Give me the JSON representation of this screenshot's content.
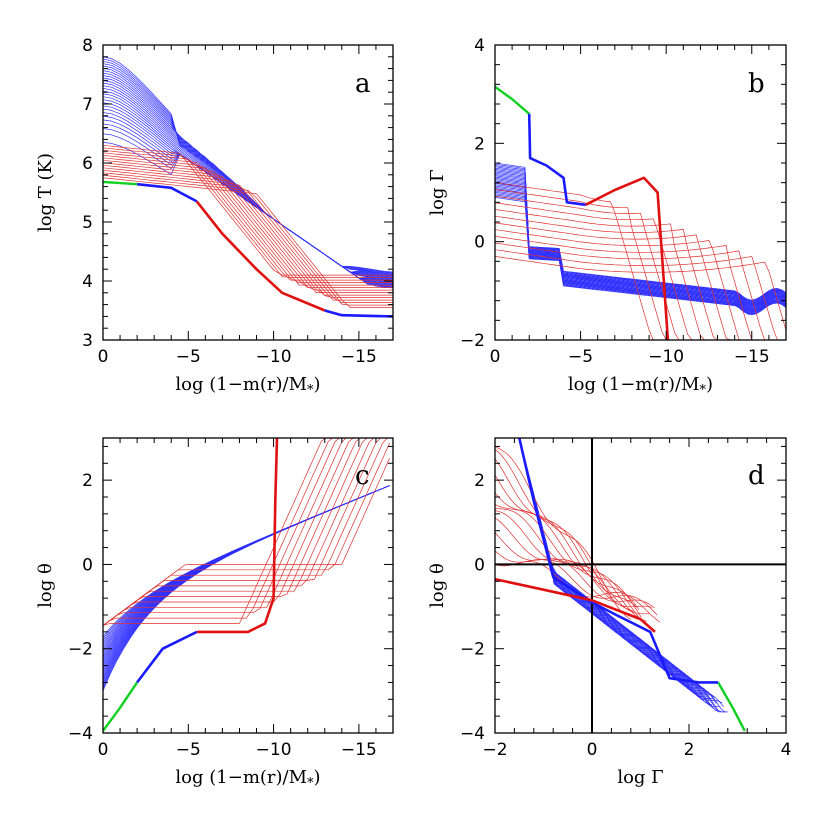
{
  "figure": {
    "description": "Stellar envelope structure: 2x2 panels"
  },
  "chart_data": [
    {
      "type": "line",
      "panel": "a",
      "panel_tag": "a",
      "xlabel": "log (1−m(r)/M",
      "xlabel_sub": "*",
      "xlabel_tail": ")",
      "ylabel": "log T (K)",
      "xlim": [
        0,
        -17
      ],
      "ylim": [
        3,
        8
      ],
      "xticks": [
        0,
        -5,
        -10,
        -15
      ],
      "yticks": [
        3,
        4,
        5,
        6,
        7,
        8
      ],
      "xtick_labels": [
        "0",
        "−5",
        "−10",
        "−15"
      ],
      "ytick_labels": [
        "3",
        "4",
        "5",
        "6",
        "7",
        "8"
      ],
      "highlight": {
        "green": [
          [
            0,
            5.68
          ],
          [
            -2,
            5.64
          ]
        ],
        "blue1": [
          [
            -2,
            5.64
          ],
          [
            -4,
            5.58
          ],
          [
            -5.5,
            5.35
          ]
        ],
        "red": [
          [
            -5.5,
            5.35
          ],
          [
            -7,
            4.8
          ],
          [
            -9,
            4.2
          ],
          [
            -10.5,
            3.8
          ],
          [
            -13,
            3.5
          ]
        ],
        "blue2": [
          [
            -13,
            3.5
          ],
          [
            -14,
            3.42
          ],
          [
            -17,
            3.4
          ]
        ]
      },
      "family": {
        "blue_count": 28,
        "red_count": 14,
        "center_top": 7.8,
        "center_low": 6.4
      }
    },
    {
      "type": "line",
      "panel": "b",
      "panel_tag": "b",
      "xlabel": "log (1−m(r)/M",
      "xlabel_sub": "*",
      "xlabel_tail": ")",
      "ylabel": "log Γ",
      "xlim": [
        0,
        -17
      ],
      "ylim": [
        -2,
        4
      ],
      "xticks": [
        0,
        -5,
        -10,
        -15
      ],
      "yticks": [
        -2,
        0,
        2,
        4
      ],
      "xtick_labels": [
        "0",
        "−5",
        "−10",
        "−15"
      ],
      "ytick_labels": [
        "−2",
        "0",
        "2",
        "4"
      ],
      "highlight": {
        "green": [
          [
            0,
            3.15
          ],
          [
            -1,
            2.9
          ],
          [
            -2,
            2.6
          ]
        ],
        "blue1": [
          [
            -2,
            2.6
          ],
          [
            -2.05,
            1.7
          ],
          [
            -3,
            1.55
          ],
          [
            -4,
            1.3
          ],
          [
            -4.2,
            0.8
          ],
          [
            -5.3,
            0.75
          ]
        ],
        "red": [
          [
            -5.3,
            0.75
          ],
          [
            -7,
            1.05
          ],
          [
            -8.7,
            1.3
          ],
          [
            -9.5,
            1.0
          ],
          [
            -9.9,
            -1.0
          ],
          [
            -10.1,
            -2.0
          ]
        ]
      },
      "family": {
        "blue_count": 28,
        "red_count": 12
      }
    },
    {
      "type": "line",
      "panel": "c",
      "panel_tag": "c",
      "xlabel": "log (1−m(r)/M",
      "xlabel_sub": "*",
      "xlabel_tail": ")",
      "ylabel": "log θ",
      "xlim": [
        0,
        -17
      ],
      "ylim": [
        -4,
        3
      ],
      "xticks": [
        0,
        -5,
        -10,
        -15
      ],
      "yticks": [
        -4,
        -2,
        0,
        2
      ],
      "xtick_labels": [
        "0",
        "−5",
        "−10",
        "−15"
      ],
      "ytick_labels": [
        "−4",
        "−2",
        "0",
        "2"
      ],
      "highlight": {
        "green": [
          [
            0,
            -3.95
          ],
          [
            -1,
            -3.4
          ],
          [
            -2,
            -2.8
          ]
        ],
        "blue1": [
          [
            -2,
            -2.8
          ],
          [
            -3.5,
            -2.0
          ],
          [
            -5.5,
            -1.6
          ]
        ],
        "red": [
          [
            -5.5,
            -1.6
          ],
          [
            -8.5,
            -1.6
          ],
          [
            -9.5,
            -1.4
          ],
          [
            -10,
            -0.8
          ],
          [
            -10.1,
            1.5
          ],
          [
            -10.2,
            3.0
          ]
        ]
      },
      "family": {
        "blue_count": 28,
        "red_count": 12
      }
    },
    {
      "type": "line",
      "panel": "d",
      "panel_tag": "d",
      "xlabel": "log Γ",
      "ylabel": "log θ",
      "xlim": [
        -2,
        4
      ],
      "ylim": [
        -4,
        3
      ],
      "xticks": [
        -2,
        0,
        2,
        4
      ],
      "yticks": [
        -4,
        -2,
        0,
        2
      ],
      "xtick_labels": [
        "−2",
        "0",
        "2",
        "4"
      ],
      "ytick_labels": [
        "−4",
        "−2",
        "0",
        "2"
      ],
      "reference_lines": {
        "x": 0,
        "y": 0
      },
      "highlight": {
        "green": [
          [
            2.6,
            -2.8
          ],
          [
            2.9,
            -3.4
          ],
          [
            3.15,
            -3.95
          ]
        ],
        "blue1": [
          [
            -1.5,
            3.0
          ],
          [
            -1.2,
            1.5
          ],
          [
            -0.8,
            -0.3
          ],
          [
            0.0,
            -0.9
          ],
          [
            0.5,
            -1.2
          ],
          [
            1.2,
            -1.6
          ],
          [
            1.6,
            -2.7
          ],
          [
            2.2,
            -2.8
          ],
          [
            2.6,
            -2.8
          ]
        ],
        "red": [
          [
            -2.0,
            -0.35
          ],
          [
            -1.0,
            -0.6
          ],
          [
            0.0,
            -0.85
          ],
          [
            1.0,
            -1.3
          ],
          [
            1.3,
            -1.6
          ]
        ]
      },
      "family": {
        "blue_count": 28,
        "red_count": 12
      }
    }
  ],
  "colors": {
    "blue": "#1a1aff",
    "red": "#e01010",
    "green": "#10d020",
    "thin_blue": "#3030ff",
    "thin_red": "#e03030",
    "axis": "#000000"
  }
}
